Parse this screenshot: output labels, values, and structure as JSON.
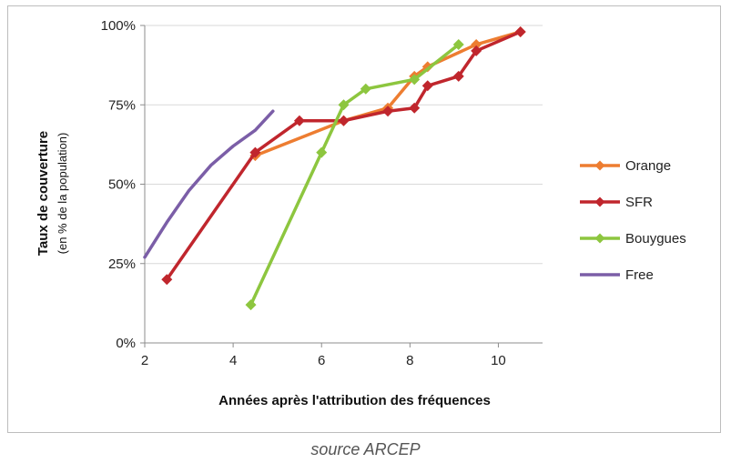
{
  "chart_data": {
    "type": "line",
    "xlabel": "Années après l'attribution des fréquences",
    "ylabel": "Taux de couverture",
    "ylabel_sub": "(en % de la population)",
    "xlim": [
      2,
      11
    ],
    "ylim": [
      0,
      100
    ],
    "x_ticks": [
      2,
      4,
      6,
      8,
      10
    ],
    "y_ticks": [
      0,
      25,
      50,
      75,
      100
    ],
    "y_tick_labels": [
      "0%",
      "25%",
      "50%",
      "75%",
      "100%"
    ],
    "grid": "horizontal",
    "legend_position": "right",
    "series": [
      {
        "name": "Orange",
        "color": "#ed7d31",
        "marker": "diamond",
        "points": [
          [
            4.5,
            59
          ],
          [
            6.5,
            70
          ],
          [
            7.5,
            74
          ],
          [
            8.1,
            84
          ],
          [
            8.4,
            87
          ],
          [
            9.5,
            94
          ],
          [
            10.5,
            98
          ]
        ]
      },
      {
        "name": "SFR",
        "color": "#c0262d",
        "marker": "diamond",
        "points": [
          [
            2.5,
            20
          ],
          [
            4.5,
            60
          ],
          [
            5.5,
            70
          ],
          [
            6.5,
            70
          ],
          [
            7.5,
            73
          ],
          [
            8.1,
            74
          ],
          [
            8.4,
            81
          ],
          [
            9.1,
            84
          ],
          [
            9.5,
            92
          ],
          [
            10.5,
            98
          ]
        ]
      },
      {
        "name": "Bouygues",
        "color": "#8dc63f",
        "marker": "diamond",
        "points": [
          [
            4.4,
            12
          ],
          [
            6.0,
            60
          ],
          [
            6.5,
            75
          ],
          [
            7.0,
            80
          ],
          [
            8.1,
            83
          ],
          [
            9.1,
            94
          ]
        ]
      },
      {
        "name": "Free",
        "color": "#7b5ea7",
        "marker": "none",
        "points": [
          [
            2.0,
            27
          ],
          [
            2.5,
            38
          ],
          [
            3.0,
            48
          ],
          [
            3.5,
            56
          ],
          [
            4.0,
            62
          ],
          [
            4.5,
            67
          ],
          [
            4.9,
            73
          ]
        ]
      }
    ]
  },
  "caption": "source ARCEP"
}
